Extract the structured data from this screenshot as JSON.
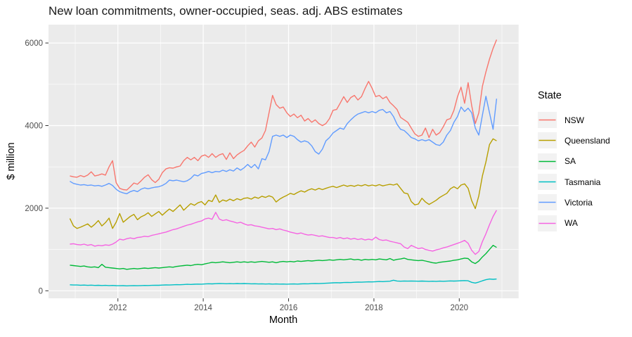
{
  "title": "New loan commitments, owner-occupied, seas. adj. ABS estimates",
  "chart_data": {
    "type": "line",
    "xlabel": "Month",
    "ylabel": "$ million",
    "legend_title": "State",
    "legend_position": "right",
    "grid": true,
    "frequency": "monthly",
    "x_start": "2010-11",
    "x_end": "2020-11",
    "x_ticks": [
      2012,
      2014,
      2016,
      2018,
      2020
    ],
    "x_tick_labels": [
      "2012",
      "2014",
      "2016",
      "2018",
      "2020"
    ],
    "x_minor_gridlines": [
      2011,
      2013,
      2015,
      2017,
      2019,
      2021
    ],
    "y_ticks": [
      0,
      2000,
      4000,
      6000
    ],
    "y_tick_labels": [
      "0",
      "2000",
      "4000",
      "6000"
    ],
    "y_minor_gridlines": [
      1000,
      3000,
      5000
    ],
    "ylim": [
      -180,
      6440
    ],
    "colors": {
      "panel_bg": "#EBEBEB",
      "gridline": "#FFFFFF",
      "tick_mark": "#333333",
      "tick_label": "#4D4D4D",
      "legend_key_bg": "#F2F2F2"
    },
    "series": [
      {
        "name": "NSW",
        "color": "#F8766D",
        "values": [
          2780,
          2760,
          2750,
          2790,
          2760,
          2800,
          2880,
          2780,
          2800,
          2830,
          2800,
          3000,
          3150,
          2620,
          2480,
          2450,
          2440,
          2520,
          2610,
          2580,
          2660,
          2750,
          2810,
          2690,
          2620,
          2700,
          2860,
          2950,
          2980,
          2970,
          3000,
          3020,
          3150,
          3230,
          3170,
          3230,
          3150,
          3260,
          3290,
          3230,
          3320,
          3230,
          3290,
          3320,
          3180,
          3340,
          3200,
          3290,
          3350,
          3400,
          3510,
          3600,
          3480,
          3630,
          3700,
          3880,
          4310,
          4730,
          4510,
          4420,
          4450,
          4310,
          4220,
          4280,
          4190,
          4250,
          4110,
          4170,
          4080,
          4140,
          4050,
          4000,
          4050,
          4170,
          4370,
          4390,
          4540,
          4700,
          4560,
          4680,
          4730,
          4620,
          4700,
          4900,
          5070,
          4900,
          4700,
          4730,
          4650,
          4700,
          4560,
          4480,
          4390,
          4200,
          4140,
          4080,
          3940,
          3800,
          3740,
          3770,
          3940,
          3710,
          3910,
          3770,
          3830,
          3970,
          4140,
          4170,
          4370,
          4700,
          4930,
          4540,
          5040,
          4480,
          4050,
          4310,
          4950,
          5300,
          5610,
          5870,
          6080
        ]
      },
      {
        "name": "Queensland",
        "color": "#B79F00",
        "values": [
          1750,
          1570,
          1510,
          1540,
          1580,
          1620,
          1540,
          1610,
          1700,
          1570,
          1650,
          1760,
          1510,
          1660,
          1870,
          1660,
          1730,
          1800,
          1850,
          1720,
          1790,
          1830,
          1890,
          1800,
          1860,
          1920,
          1830,
          1910,
          1980,
          1920,
          2000,
          2080,
          1950,
          2030,
          2110,
          2070,
          2130,
          2160,
          2080,
          2190,
          2160,
          2320,
          2140,
          2200,
          2170,
          2220,
          2180,
          2230,
          2200,
          2240,
          2250,
          2220,
          2270,
          2240,
          2290,
          2260,
          2300,
          2270,
          2150,
          2220,
          2270,
          2310,
          2360,
          2330,
          2380,
          2420,
          2390,
          2440,
          2470,
          2440,
          2480,
          2450,
          2480,
          2510,
          2530,
          2500,
          2530,
          2560,
          2530,
          2550,
          2530,
          2560,
          2540,
          2570,
          2540,
          2560,
          2540,
          2570,
          2540,
          2560,
          2580,
          2560,
          2590,
          2480,
          2370,
          2350,
          2160,
          2080,
          2100,
          2240,
          2150,
          2090,
          2140,
          2190,
          2260,
          2310,
          2360,
          2470,
          2520,
          2470,
          2560,
          2590,
          2480,
          2180,
          1990,
          2300,
          2780,
          3120,
          3540,
          3680,
          3630
        ]
      },
      {
        "name": "SA",
        "color": "#00BA38",
        "values": [
          620,
          610,
          600,
          590,
          600,
          580,
          570,
          580,
          560,
          640,
          570,
          560,
          550,
          540,
          530,
          540,
          520,
          530,
          540,
          530,
          540,
          550,
          540,
          550,
          560,
          550,
          560,
          570,
          580,
          570,
          590,
          600,
          610,
          620,
          610,
          630,
          640,
          630,
          650,
          670,
          690,
          680,
          690,
          700,
          690,
          680,
          690,
          700,
          690,
          700,
          690,
          700,
          690,
          700,
          710,
          700,
          690,
          700,
          680,
          700,
          710,
          700,
          710,
          700,
          720,
          710,
          720,
          730,
          720,
          730,
          740,
          730,
          740,
          750,
          740,
          750,
          760,
          750,
          760,
          770,
          750,
          760,
          740,
          760,
          750,
          760,
          750,
          770,
          760,
          750,
          780,
          740,
          760,
          770,
          790,
          760,
          750,
          740,
          730,
          740,
          720,
          700,
          680,
          670,
          690,
          700,
          710,
          720,
          740,
          750,
          770,
          790,
          780,
          700,
          660,
          720,
          820,
          900,
          1000,
          1100,
          1050
        ]
      },
      {
        "name": "Tasmania",
        "color": "#00BFC4",
        "values": [
          145,
          140,
          140,
          135,
          138,
          132,
          136,
          130,
          133,
          128,
          131,
          126,
          129,
          124,
          122,
          125,
          120,
          123,
          126,
          122,
          126,
          130,
          127,
          132,
          135,
          133,
          138,
          142,
          139,
          145,
          149,
          146,
          152,
          156,
          153,
          158,
          162,
          160,
          165,
          170,
          167,
          172,
          176,
          173,
          170,
          174,
          171,
          175,
          172,
          176,
          172,
          168,
          171,
          166,
          169,
          164,
          167,
          162,
          165,
          161,
          164,
          160,
          163,
          166,
          162,
          167,
          171,
          168,
          173,
          177,
          174,
          179,
          183,
          187,
          192,
          196,
          193,
          199,
          203,
          200,
          206,
          210,
          207,
          213,
          217,
          214,
          220,
          225,
          222,
          228,
          232,
          255,
          236,
          232,
          236,
          233,
          237,
          234,
          231,
          235,
          231,
          228,
          232,
          229,
          233,
          230,
          234,
          238,
          235,
          239,
          243,
          247,
          242,
          205,
          188,
          212,
          242,
          268,
          284,
          278,
          285
        ]
      },
      {
        "name": "Victoria",
        "color": "#619CFF",
        "values": [
          2650,
          2600,
          2580,
          2560,
          2570,
          2550,
          2560,
          2540,
          2550,
          2530,
          2560,
          2600,
          2550,
          2460,
          2400,
          2370,
          2350,
          2400,
          2430,
          2400,
          2460,
          2490,
          2470,
          2490,
          2510,
          2520,
          2550,
          2600,
          2680,
          2665,
          2680,
          2660,
          2640,
          2665,
          2720,
          2810,
          2780,
          2840,
          2860,
          2890,
          2860,
          2890,
          2880,
          2920,
          2890,
          2930,
          2900,
          2975,
          2920,
          2980,
          3060,
          2980,
          3060,
          2950,
          3200,
          3170,
          3370,
          3740,
          3770,
          3740,
          3770,
          3710,
          3770,
          3740,
          3660,
          3600,
          3630,
          3600,
          3510,
          3370,
          3310,
          3430,
          3630,
          3710,
          3820,
          3880,
          3940,
          3910,
          4050,
          4140,
          4220,
          4280,
          4310,
          4340,
          4310,
          4340,
          4310,
          4370,
          4390,
          4310,
          4340,
          4220,
          4030,
          3910,
          3880,
          3800,
          3710,
          3680,
          3630,
          3660,
          3630,
          3660,
          3600,
          3540,
          3520,
          3600,
          3770,
          3880,
          4080,
          4220,
          4450,
          4340,
          4420,
          4310,
          3940,
          3770,
          4250,
          4710,
          4310,
          3910,
          4650
        ]
      },
      {
        "name": "WA",
        "color": "#F564E2",
        "values": [
          1130,
          1140,
          1120,
          1110,
          1130,
          1100,
          1120,
          1080,
          1100,
          1090,
          1110,
          1100,
          1130,
          1180,
          1250,
          1230,
          1260,
          1280,
          1260,
          1290,
          1300,
          1320,
          1310,
          1340,
          1360,
          1380,
          1400,
          1420,
          1450,
          1480,
          1500,
          1530,
          1560,
          1590,
          1610,
          1640,
          1670,
          1690,
          1740,
          1760,
          1730,
          1900,
          1740,
          1700,
          1720,
          1690,
          1670,
          1640,
          1660,
          1620,
          1590,
          1600,
          1570,
          1560,
          1540,
          1520,
          1500,
          1510,
          1480,
          1500,
          1470,
          1450,
          1420,
          1400,
          1380,
          1400,
          1370,
          1350,
          1360,
          1340,
          1320,
          1330,
          1310,
          1290,
          1290,
          1270,
          1290,
          1260,
          1280,
          1250,
          1270,
          1240,
          1260,
          1230,
          1250,
          1230,
          1300,
          1240,
          1220,
          1230,
          1200,
          1180,
          1160,
          1140,
          1060,
          1020,
          1100,
          1060,
          1020,
          1040,
          1000,
          980,
          960,
          990,
          1010,
          1040,
          1060,
          1090,
          1120,
          1150,
          1180,
          1220,
          1150,
          980,
          880,
          950,
          1190,
          1380,
          1600,
          1800,
          1950
        ]
      }
    ]
  }
}
